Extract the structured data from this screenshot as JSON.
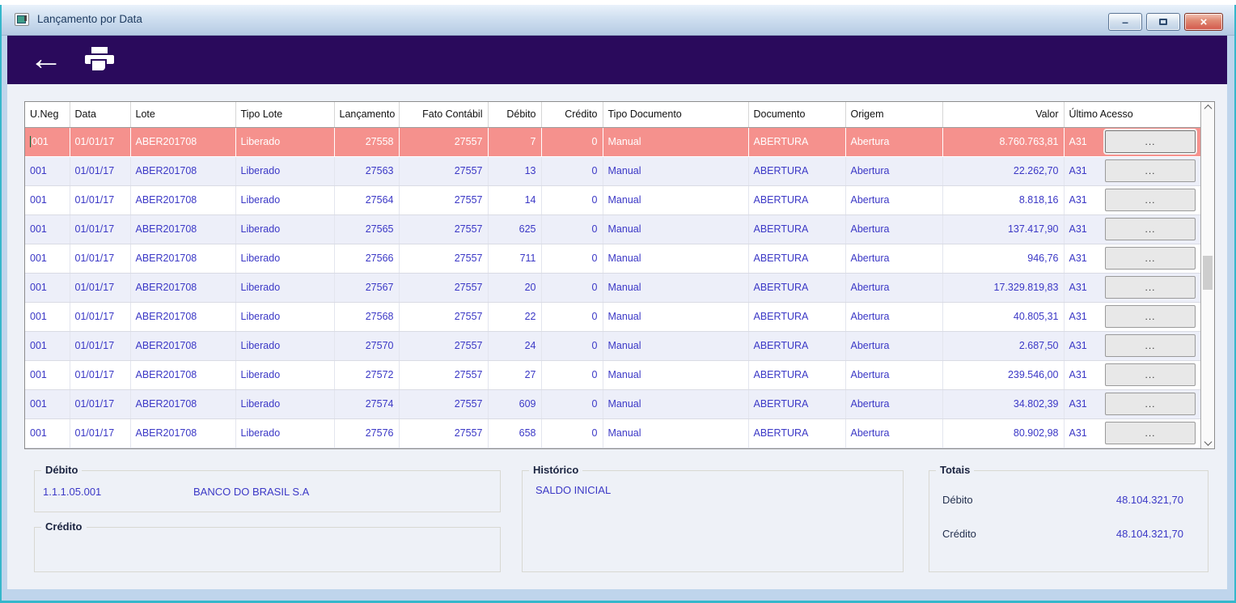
{
  "window": {
    "title": "Lançamento por Data",
    "controls": {
      "minimize": "–",
      "close": "×"
    }
  },
  "toolbar": {
    "icons": [
      {
        "name": "back-icon",
        "glyph": "←"
      },
      {
        "name": "printer-icon",
        "glyph": "printer-shape"
      }
    ]
  },
  "table": {
    "columns": [
      {
        "key": "uneg",
        "label": "U.Neg"
      },
      {
        "key": "data",
        "label": "Data"
      },
      {
        "key": "lote",
        "label": "Lote"
      },
      {
        "key": "tipo_lote",
        "label": "Tipo Lote"
      },
      {
        "key": "lancamento",
        "label": "Lançamento"
      },
      {
        "key": "fato_contabil",
        "label": "Fato Contábil"
      },
      {
        "key": "debito",
        "label": "Débito"
      },
      {
        "key": "credito",
        "label": "Crédito"
      },
      {
        "key": "tipo_documento",
        "label": "Tipo Documento"
      },
      {
        "key": "documento",
        "label": "Documento"
      },
      {
        "key": "origem",
        "label": "Origem"
      },
      {
        "key": "valor",
        "label": "Valor"
      },
      {
        "key": "ultimo_acesso",
        "label": "Último Acesso"
      }
    ],
    "action_button_label": "...",
    "selected_row_index": 0,
    "rows": [
      {
        "uneg": "001",
        "data": "01/01/17",
        "lote": "ABER201708",
        "tipo_lote": "Liberado",
        "lancamento": "27558",
        "fato_contabil": "27557",
        "debito": "7",
        "credito": "0",
        "tipo_documento": "Manual",
        "documento": "ABERTURA",
        "origem": "Abertura",
        "valor": "8.760.763,81",
        "ultimo_acesso": "A31"
      },
      {
        "uneg": "001",
        "data": "01/01/17",
        "lote": "ABER201708",
        "tipo_lote": "Liberado",
        "lancamento": "27563",
        "fato_contabil": "27557",
        "debito": "13",
        "credito": "0",
        "tipo_documento": "Manual",
        "documento": "ABERTURA",
        "origem": "Abertura",
        "valor": "22.262,70",
        "ultimo_acesso": "A31"
      },
      {
        "uneg": "001",
        "data": "01/01/17",
        "lote": "ABER201708",
        "tipo_lote": "Liberado",
        "lancamento": "27564",
        "fato_contabil": "27557",
        "debito": "14",
        "credito": "0",
        "tipo_documento": "Manual",
        "documento": "ABERTURA",
        "origem": "Abertura",
        "valor": "8.818,16",
        "ultimo_acesso": "A31"
      },
      {
        "uneg": "001",
        "data": "01/01/17",
        "lote": "ABER201708",
        "tipo_lote": "Liberado",
        "lancamento": "27565",
        "fato_contabil": "27557",
        "debito": "625",
        "credito": "0",
        "tipo_documento": "Manual",
        "documento": "ABERTURA",
        "origem": "Abertura",
        "valor": "137.417,90",
        "ultimo_acesso": "A31"
      },
      {
        "uneg": "001",
        "data": "01/01/17",
        "lote": "ABER201708",
        "tipo_lote": "Liberado",
        "lancamento": "27566",
        "fato_contabil": "27557",
        "debito": "711",
        "credito": "0",
        "tipo_documento": "Manual",
        "documento": "ABERTURA",
        "origem": "Abertura",
        "valor": "946,76",
        "ultimo_acesso": "A31"
      },
      {
        "uneg": "001",
        "data": "01/01/17",
        "lote": "ABER201708",
        "tipo_lote": "Liberado",
        "lancamento": "27567",
        "fato_contabil": "27557",
        "debito": "20",
        "credito": "0",
        "tipo_documento": "Manual",
        "documento": "ABERTURA",
        "origem": "Abertura",
        "valor": "17.329.819,83",
        "ultimo_acesso": "A31"
      },
      {
        "uneg": "001",
        "data": "01/01/17",
        "lote": "ABER201708",
        "tipo_lote": "Liberado",
        "lancamento": "27568",
        "fato_contabil": "27557",
        "debito": "22",
        "credito": "0",
        "tipo_documento": "Manual",
        "documento": "ABERTURA",
        "origem": "Abertura",
        "valor": "40.805,31",
        "ultimo_acesso": "A31"
      },
      {
        "uneg": "001",
        "data": "01/01/17",
        "lote": "ABER201708",
        "tipo_lote": "Liberado",
        "lancamento": "27570",
        "fato_contabil": "27557",
        "debito": "24",
        "credito": "0",
        "tipo_documento": "Manual",
        "documento": "ABERTURA",
        "origem": "Abertura",
        "valor": "2.687,50",
        "ultimo_acesso": "A31"
      },
      {
        "uneg": "001",
        "data": "01/01/17",
        "lote": "ABER201708",
        "tipo_lote": "Liberado",
        "lancamento": "27572",
        "fato_contabil": "27557",
        "debito": "27",
        "credito": "0",
        "tipo_documento": "Manual",
        "documento": "ABERTURA",
        "origem": "Abertura",
        "valor": "239.546,00",
        "ultimo_acesso": "A31"
      },
      {
        "uneg": "001",
        "data": "01/01/17",
        "lote": "ABER201708",
        "tipo_lote": "Liberado",
        "lancamento": "27574",
        "fato_contabil": "27557",
        "debito": "609",
        "credito": "0",
        "tipo_documento": "Manual",
        "documento": "ABERTURA",
        "origem": "Abertura",
        "valor": "34.802,39",
        "ultimo_acesso": "A31"
      },
      {
        "uneg": "001",
        "data": "01/01/17",
        "lote": "ABER201708",
        "tipo_lote": "Liberado",
        "lancamento": "27576",
        "fato_contabil": "27557",
        "debito": "658",
        "credito": "0",
        "tipo_documento": "Manual",
        "documento": "ABERTURA",
        "origem": "Abertura",
        "valor": "80.902,98",
        "ultimo_acesso": "A31"
      }
    ]
  },
  "panels": {
    "debito": {
      "title": "Débito",
      "account_code": "1.1.1.05.001",
      "account_name": "BANCO DO BRASIL S.A"
    },
    "credito": {
      "title": "Crédito"
    },
    "historico": {
      "title": "Histórico",
      "text": "SALDO INICIAL"
    },
    "totais": {
      "title": "Totais",
      "rows": [
        {
          "label": "Débito",
          "value": "48.104.321,70"
        },
        {
          "label": "Crédito",
          "value": "48.104.321,70"
        }
      ]
    }
  },
  "colors": {
    "toolbar_bg": "#2a0a5c",
    "selected_row_bg": "#f5918d",
    "selected_row_text": "#ffffff",
    "row_alt_bg": "#edeff9",
    "data_text": "#3b38c6",
    "panel_label_text": "#1b2440",
    "window_frame": "#bfd5ec",
    "frame_accent": "#35b7cb",
    "close_button": "#d2574a"
  }
}
